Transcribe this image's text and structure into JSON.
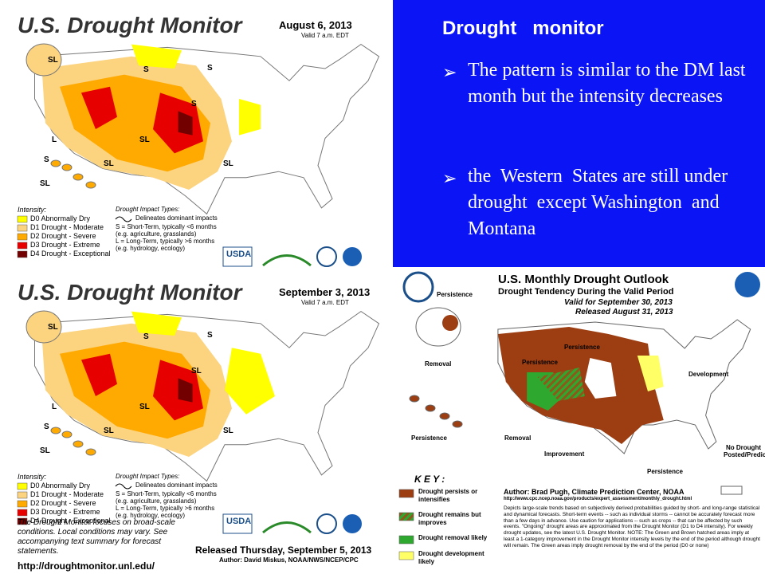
{
  "slide": {
    "heading": "Drought   monitor",
    "bullets": [
      "The pattern is similar to the DM last month but the intensity decreases",
      "the  Western  States are still under drought  except Washington  and  Montana"
    ]
  },
  "maps": [
    {
      "title": "U.S. Drought Monitor",
      "date": "August 6, 2013",
      "valid": "Valid 7 a.m. EDT",
      "region_labels": [
        "SL",
        "S",
        "S",
        "S",
        "SL",
        "SL",
        "SL",
        "S",
        "L",
        "SL"
      ],
      "intensity_heading": "Intensity:",
      "intensity": [
        "D0 Abnormally Dry",
        "D1 Drought - Moderate",
        "D2 Drought - Severe",
        "D3 Drought - Extreme",
        "D4 Drought - Exceptional"
      ],
      "impact_heading": "Drought Impact Types:",
      "impact": [
        "Delineates dominant impacts",
        "S = Short-Term, typically <6 months (e.g. agriculture, grasslands)",
        "L = Long-Term, typically >6 months (e.g. hydrology, ecology)"
      ],
      "logo": "USDA"
    },
    {
      "title": "U.S. Drought Monitor",
      "date": "September 3, 2013",
      "valid": "Valid 7 a.m. EDT",
      "region_labels": [
        "SL",
        "S",
        "S",
        "SL",
        "SL",
        "SL",
        "SL",
        "S",
        "L",
        "SL"
      ],
      "intensity_heading": "Intensity:",
      "intensity": [
        "D0 Abnormally Dry",
        "D1 Drought - Moderate",
        "D2 Drought - Severe",
        "D3 Drought - Extreme",
        "D4 Drought - Exceptional"
      ],
      "impact_heading": "Drought Impact Types:",
      "impact": [
        "Delineates dominant impacts",
        "S = Short-Term, typically <6 months (e.g. agriculture, grasslands)",
        "L = Long-Term, typically >6 months (e.g. hydrology, ecology)"
      ],
      "logo": "USDA",
      "note": "The Drought Monitor focuses on broad-scale conditions. Local conditions may vary. See accompanying text summary for forecast statements.",
      "released": "Released Thursday, September 5, 2013",
      "author": "Author: David Miskus, NOAA/NWS/NCEP/CPC",
      "url": "http://droughtmonitor.unl.edu/"
    }
  ],
  "outlook": {
    "title": "U.S. Monthly Drought Outlook",
    "subtitle": "Drought Tendency During the Valid Period",
    "valid": "Valid for September 30, 2013",
    "released": "Released August 31, 2013",
    "labels": [
      "Persistence",
      "Persistence",
      "Persistence",
      "Removal",
      "Persistence",
      "Development",
      "Removal",
      "Improvement",
      "Persistence"
    ],
    "no_drought": "No Drought Posted/Predicted",
    "key_title": "K E Y :",
    "key": [
      "Drought persists or intensifies",
      "Drought remains but improves",
      "Drought removal likely",
      "Drought development likely"
    ],
    "author": "Author: Brad Pugh, Climate Prediction Center, NOAA",
    "url": "http://www.cpc.ncep.noaa.gov/products/expert_assessment/monthly_drought.html",
    "description": "Depicts large-scale trends based on subjectively derived probabilities guided by short- and long-range statistical and dynamical forecasts. Short-term events -- such as individual storms -- cannot be accurately forecast more than a few days in advance. Use caution for applications -- such as crops -- that can be affected by such events. \"Ongoing\" drought areas are approximated from the Drought Monitor (D1 to D4 intensity). For weekly drought updates, see the latest U.S. Drought Monitor. NOTE: The Green and Brown hatched areas imply at least a 1-category improvement in the Drought Monitor intensity levels by the end of the period although drought will remain. The Green areas imply drought removal by the end of the period (D0 or none)"
  }
}
